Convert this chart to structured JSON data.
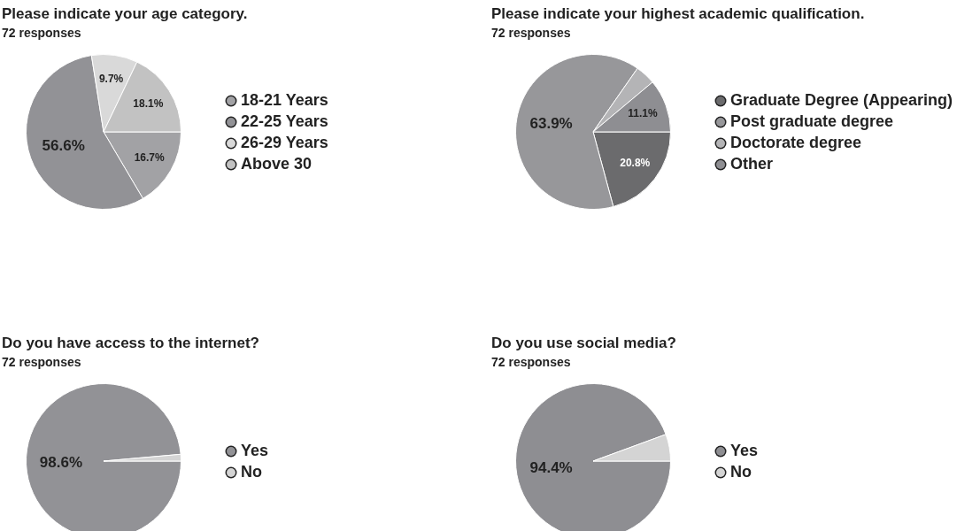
{
  "chart_data": [
    {
      "type": "pie",
      "title": "Please indicate your age category.",
      "subtitle": "72 responses",
      "categories": [
        "18-21 Years",
        "22-25 Years",
        "26-29 Years",
        "Above 30"
      ],
      "values": [
        16.7,
        56.6,
        9.7,
        18.1
      ],
      "colors": [
        "#a2a2a5",
        "#929296",
        "#d9d9d9",
        "#c2c2c2"
      ],
      "value_labels": [
        "16.7%",
        "56.6%",
        "9.7%",
        "18.1%"
      ],
      "legend": "right"
    },
    {
      "type": "pie",
      "title": "Please indicate your highest academic qualification.",
      "subtitle": "72 responses",
      "categories": [
        "Graduate Degree (Appearing)",
        "Post graduate degree",
        "Doctorate degree",
        "Other"
      ],
      "values": [
        20.8,
        63.9,
        4.2,
        11.1
      ],
      "colors": [
        "#6b6b6d",
        "#97979a",
        "#b4b4b6",
        "#8e8e92"
      ],
      "value_labels": [
        "20.8%",
        "63.9%",
        null,
        "11.1%"
      ],
      "legend": "right"
    },
    {
      "type": "pie",
      "title": "Do you have access to the internet?",
      "subtitle": "72 responses",
      "categories": [
        "Yes",
        "No"
      ],
      "values": [
        98.6,
        1.4
      ],
      "colors": [
        "#929296",
        "#d4d4d4"
      ],
      "value_labels": [
        "98.6%",
        null
      ],
      "legend": "right"
    },
    {
      "type": "pie",
      "title": "Do you use social media?",
      "subtitle": "72 responses",
      "categories": [
        "Yes",
        "No"
      ],
      "values": [
        94.4,
        5.6
      ],
      "colors": [
        "#8e8e92",
        "#d4d4d4"
      ],
      "value_labels": [
        "94.4%",
        null
      ],
      "legend": "right"
    }
  ]
}
